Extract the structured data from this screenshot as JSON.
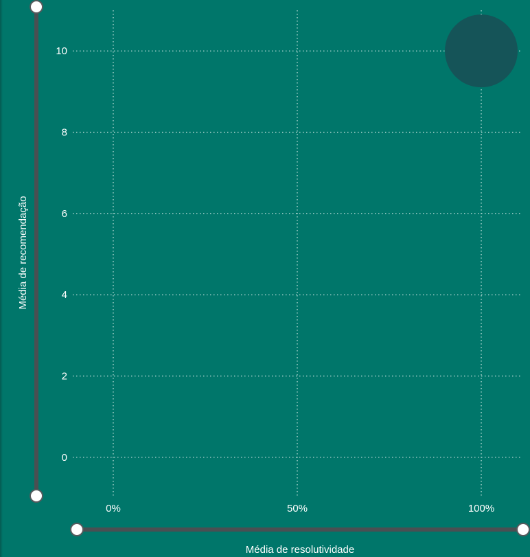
{
  "chart_data": {
    "type": "scatter",
    "title": "",
    "xlabel": "Média de resolutividade",
    "ylabel": "Média de recomendação",
    "x_ticks": [
      {
        "value": 0,
        "label": "0%"
      },
      {
        "value": 0.5,
        "label": "50%"
      },
      {
        "value": 1,
        "label": "100%"
      }
    ],
    "y_ticks": [
      {
        "value": 0,
        "label": "0"
      },
      {
        "value": 2,
        "label": "2"
      },
      {
        "value": 4,
        "label": "4"
      },
      {
        "value": 6,
        "label": "6"
      },
      {
        "value": 8,
        "label": "8"
      },
      {
        "value": 10,
        "label": "10"
      }
    ],
    "xlim": [
      -0.11,
      1.11
    ],
    "ylim": [
      -1.0,
      11.0
    ],
    "grid": true,
    "legend": "none",
    "points": [
      {
        "x": 1.0,
        "y": 10.0
      }
    ]
  },
  "colors": {
    "background": "#00766a",
    "gridline": "#cfe7e3",
    "axis_text": "#ffffff",
    "bubble": "#155458",
    "slider_track": "#4a4f52",
    "slider_handle": "#ffffff"
  }
}
